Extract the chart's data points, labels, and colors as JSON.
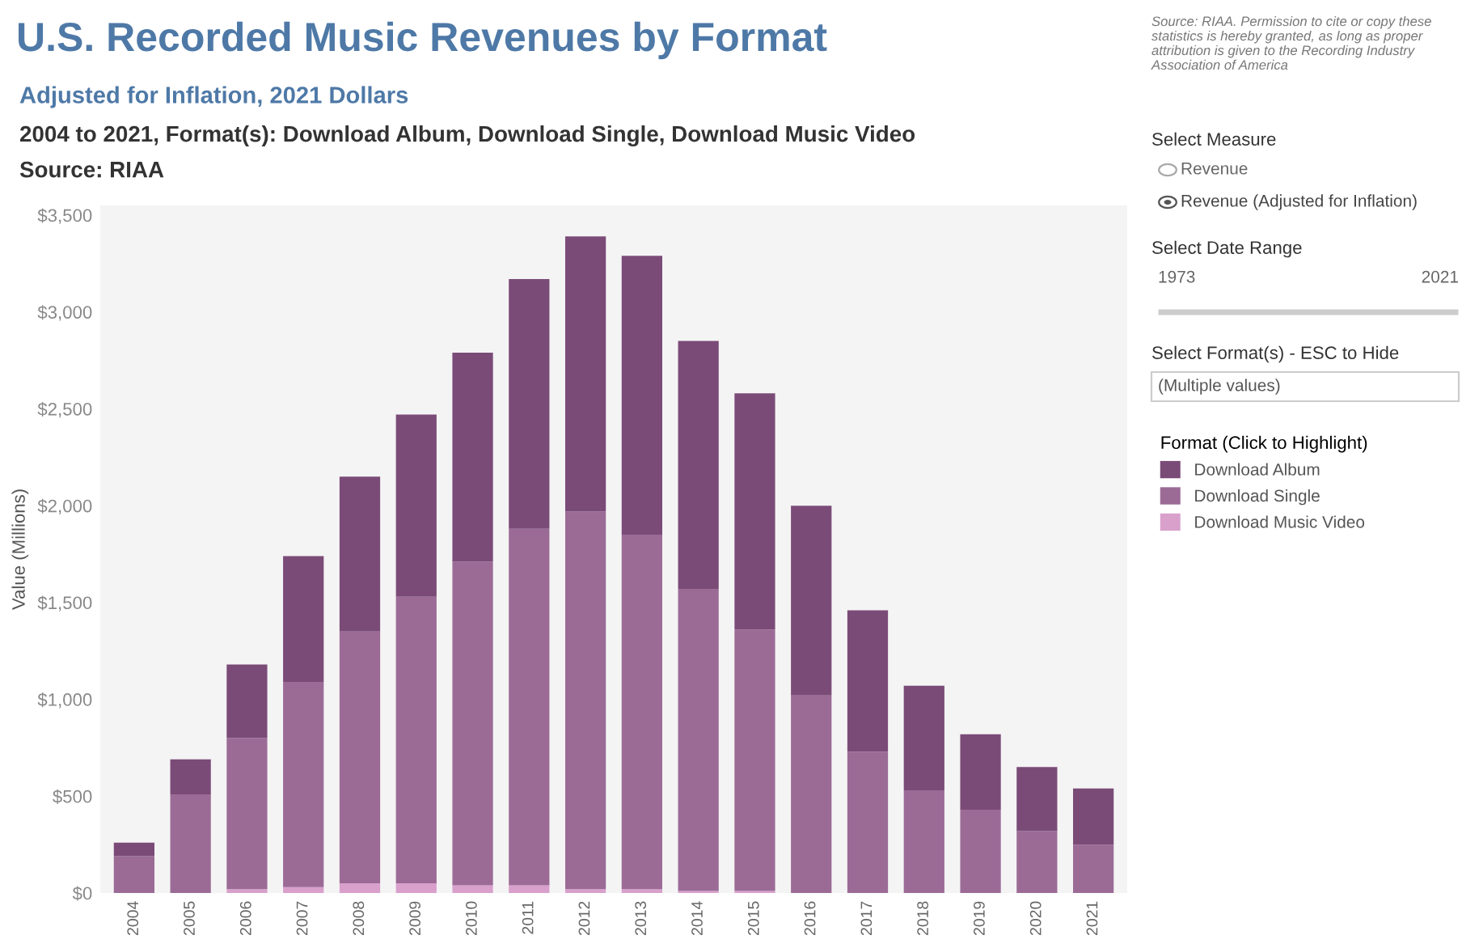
{
  "chart_data": {
    "type": "bar",
    "stacked": true,
    "title": "U.S. Recorded Music Revenues by Format",
    "subtitle": "Adjusted for Inflation, 2021 Dollars",
    "ylabel": "Value (Millions)",
    "legend_title": "Format (Click to Highlight)",
    "categories": [
      "2004",
      "2005",
      "2006",
      "2007",
      "2008",
      "2009",
      "2010",
      "2011",
      "2012",
      "2013",
      "2014",
      "2015",
      "2016",
      "2017",
      "2018",
      "2019",
      "2020",
      "2021"
    ],
    "series": [
      {
        "name": "Download Music Video",
        "color": "#d9a0cc",
        "values": [
          0,
          0,
          20,
          30,
          50,
          50,
          40,
          40,
          20,
          20,
          10,
          10,
          0,
          0,
          0,
          0,
          0,
          0
        ]
      },
      {
        "name": "Download Single",
        "color": "#9b6b96",
        "values": [
          190,
          510,
          780,
          1060,
          1300,
          1480,
          1670,
          1840,
          1950,
          1830,
          1560,
          1350,
          1020,
          730,
          530,
          430,
          320,
          250
        ]
      },
      {
        "name": "Download Album",
        "color": "#7b4b78",
        "values": [
          70,
          180,
          380,
          650,
          800,
          940,
          1080,
          1290,
          1420,
          1440,
          1280,
          1220,
          980,
          730,
          540,
          390,
          330,
          290
        ]
      }
    ],
    "ylim": [
      0,
      3550
    ],
    "yticks": [
      {
        "value": 0,
        "label": "$0"
      },
      {
        "value": 500,
        "label": "$500"
      },
      {
        "value": 1000,
        "label": "$1,000"
      },
      {
        "value": 1500,
        "label": "$1,500"
      },
      {
        "value": 2000,
        "label": "$2,000"
      },
      {
        "value": 2500,
        "label": "$2,500"
      },
      {
        "value": 3000,
        "label": "$3,000"
      },
      {
        "value": 3500,
        "label": "$3,500"
      }
    ],
    "grid": false,
    "legend": "right",
    "annotations": [
      "2004 to 2021, Format(s): Download Album, Download Single, Download Music Video",
      "Source: RIAA",
      "Source: RIAA. Permission to cite or copy these statistics is hereby granted, as long as proper attribution is given to the Recording Industry Association of America",
      "Select Measure",
      "Revenue",
      "Revenue (Adjusted for Inflation)",
      "Select Date Range",
      "1973",
      "2021",
      "Select Format(s) - ESC to Hide",
      "(Multiple values)"
    ]
  }
}
